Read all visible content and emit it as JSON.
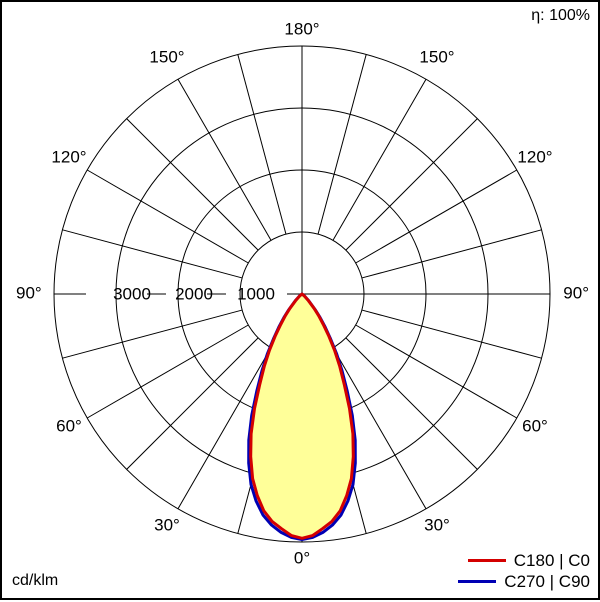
{
  "efficiency_label": "η: 100%",
  "unit_label": "cd/klm",
  "colors": {
    "c0": "#d40000",
    "c90": "#0000b4",
    "fill": "#ffff99",
    "grid": "#000000"
  },
  "chart_data": {
    "type": "polar",
    "angle_labels": {
      "bottom": "0°",
      "top": "180°",
      "left": [
        "30°",
        "60°",
        "90°",
        "120°",
        "150°"
      ],
      "right": [
        "30°",
        "60°",
        "90°",
        "120°",
        "150°"
      ]
    },
    "radial_labels": [
      "1000",
      "2000",
      "3000"
    ],
    "radial_max": 4000,
    "series": [
      {
        "name": "C180 | C0",
        "color": "#d40000",
        "angles_deg": [
          0,
          2.5,
          5,
          7.5,
          10,
          12.5,
          15,
          17.5,
          20,
          22.5,
          25,
          27.5,
          30,
          32.5,
          35,
          37.5,
          40,
          45,
          50,
          60,
          70,
          80,
          90
        ],
        "intensity": [
          3940,
          3900,
          3800,
          3700,
          3550,
          3330,
          3080,
          2750,
          2400,
          2000,
          1620,
          1320,
          1050,
          800,
          600,
          440,
          300,
          130,
          50,
          5,
          0,
          0,
          0
        ]
      },
      {
        "name": "C270 | C90",
        "color": "#0000b4",
        "angles_deg": [
          0,
          2.5,
          5,
          7.5,
          10,
          12.5,
          15,
          17.5,
          20,
          22.5,
          25,
          27.5,
          30,
          32.5,
          35,
          37.5,
          40,
          45,
          50,
          60,
          70,
          80,
          90
        ],
        "intensity": [
          3960,
          3930,
          3860,
          3760,
          3620,
          3420,
          3180,
          2860,
          2510,
          2120,
          1720,
          1400,
          1120,
          860,
          650,
          480,
          330,
          150,
          60,
          8,
          0,
          0,
          0
        ]
      }
    ]
  }
}
